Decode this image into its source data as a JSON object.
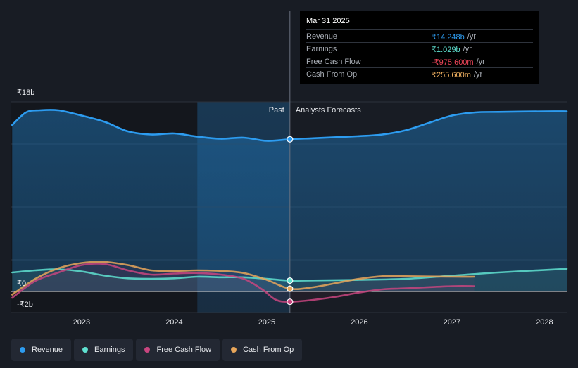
{
  "tooltip": {
    "date": "Mar 31 2025",
    "rows": [
      {
        "label": "Revenue",
        "value": "₹14.248b",
        "unit": "/yr",
        "color": "#2d9cf0"
      },
      {
        "label": "Earnings",
        "value": "₹1.029b",
        "unit": "/yr",
        "color": "#5fe0d0"
      },
      {
        "label": "Free Cash Flow",
        "value": "-₹975.600m",
        "unit": "/yr",
        "color": "#f0465a"
      },
      {
        "label": "Cash From Op",
        "value": "₹255.600m",
        "unit": "/yr",
        "color": "#f0b060"
      }
    ]
  },
  "labels": {
    "past": "Past",
    "forecast": "Analysts Forecasts"
  },
  "legend": [
    {
      "label": "Revenue",
      "color": "#2d9cf0"
    },
    {
      "label": "Earnings",
      "color": "#5fe0d0"
    },
    {
      "label": "Free Cash Flow",
      "color": "#c8457f"
    },
    {
      "label": "Cash From Op",
      "color": "#e8a65a"
    }
  ],
  "chart_data": {
    "type": "line",
    "title": "",
    "xlabel": "",
    "ylabel": "",
    "ylim": [
      -2,
      18
    ],
    "y_ticks": [
      {
        "value": 18,
        "label": "₹18b"
      },
      {
        "value": 0,
        "label": "₹0"
      },
      {
        "value": -2,
        "label": "-₹2b"
      }
    ],
    "x_ticks": [
      "2023",
      "2024",
      "2025",
      "2026",
      "2027",
      "2028"
    ],
    "xlim": [
      2022.24,
      2028.24
    ],
    "today": 2025.25,
    "shade_start": 2024.25,
    "series": [
      {
        "name": "Revenue",
        "color": "#2d9cf0",
        "x": [
          2022.25,
          2022.4,
          2022.55,
          2022.75,
          2023.0,
          2023.25,
          2023.5,
          2023.75,
          2024.0,
          2024.25,
          2024.5,
          2024.75,
          2025.0,
          2025.25,
          2025.5,
          2025.75,
          2026.0,
          2026.25,
          2026.5,
          2026.75,
          2027.0,
          2027.25,
          2027.5,
          2028.0,
          2028.24
        ],
        "y": [
          15.8,
          17.0,
          17.2,
          17.2,
          16.7,
          16.1,
          15.2,
          14.9,
          15.0,
          14.7,
          14.5,
          14.6,
          14.3,
          14.45,
          14.55,
          14.65,
          14.75,
          14.9,
          15.3,
          16.0,
          16.7,
          17.0,
          17.05,
          17.1,
          17.1
        ]
      },
      {
        "name": "Earnings",
        "color": "#5fe0d0",
        "x": [
          2022.25,
          2022.5,
          2022.75,
          2023.0,
          2023.25,
          2023.5,
          2023.75,
          2024.0,
          2024.25,
          2024.5,
          2024.75,
          2025.0,
          2025.25,
          2025.5,
          2026.0,
          2026.5,
          2027.0,
          2027.5,
          2028.24
        ],
        "y": [
          1.8,
          2.0,
          2.1,
          1.9,
          1.5,
          1.25,
          1.2,
          1.25,
          1.4,
          1.35,
          1.35,
          1.2,
          1.03,
          1.05,
          1.1,
          1.2,
          1.5,
          1.8,
          2.15
        ]
      },
      {
        "name": "Free Cash Flow",
        "color": "#c8457f",
        "x": [
          2022.25,
          2022.5,
          2022.75,
          2023.0,
          2023.25,
          2023.5,
          2023.75,
          2024.0,
          2024.25,
          2024.5,
          2024.75,
          2024.95,
          2025.1,
          2025.25,
          2025.5,
          2025.75,
          2026.0,
          2026.25,
          2026.5,
          2027.0,
          2027.24
        ],
        "y": [
          -0.6,
          1.0,
          1.8,
          2.5,
          2.6,
          2.0,
          1.6,
          1.7,
          1.75,
          1.6,
          1.2,
          0.2,
          -0.8,
          -0.98,
          -0.8,
          -0.5,
          -0.1,
          0.2,
          0.3,
          0.5,
          0.5
        ]
      },
      {
        "name": "Cash From Op",
        "color": "#e8a65a",
        "x": [
          2022.25,
          2022.5,
          2022.75,
          2023.0,
          2023.25,
          2023.5,
          2023.75,
          2024.0,
          2024.25,
          2024.5,
          2024.75,
          2025.0,
          2025.25,
          2025.5,
          2025.75,
          2026.0,
          2026.25,
          2026.5,
          2027.0,
          2027.24
        ],
        "y": [
          -0.3,
          1.2,
          2.2,
          2.7,
          2.8,
          2.5,
          2.0,
          1.95,
          2.0,
          1.95,
          1.75,
          1.1,
          0.26,
          0.4,
          0.8,
          1.2,
          1.45,
          1.45,
          1.4,
          1.4
        ]
      }
    ]
  }
}
